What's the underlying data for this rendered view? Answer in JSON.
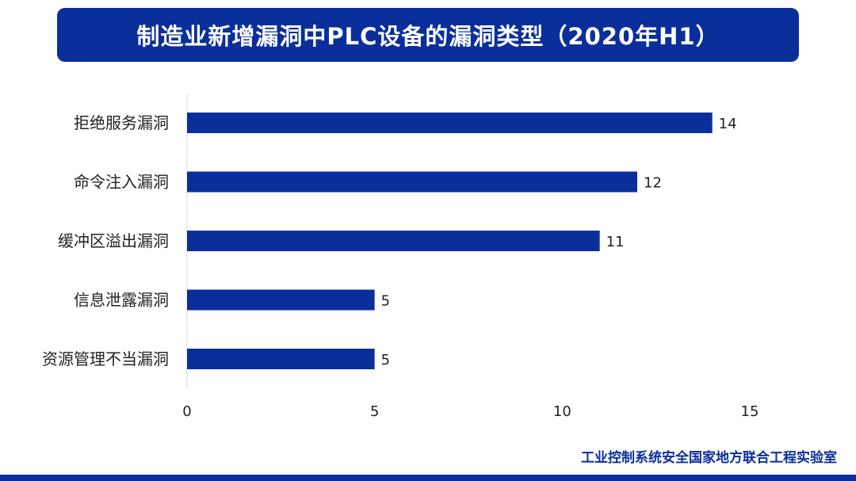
{
  "header": {
    "title": "制造业新增漏洞中PLC设备的漏洞类型（2020年H1）"
  },
  "footer": {
    "organization": "工业控制系统安全国家地方联合工程实验室"
  },
  "colors": {
    "accent": "#0a2f9b",
    "bar": "#0a2f9b",
    "axis_line": "#d9d9d9",
    "label_text": "#222222"
  },
  "chart_data": {
    "type": "bar",
    "orientation": "horizontal",
    "categories": [
      "拒绝服务漏洞",
      "命令注入漏洞",
      "缓冲区溢出漏洞",
      "信息泄露漏洞",
      "资源管理不当漏洞"
    ],
    "values": [
      14,
      12,
      11,
      5,
      5
    ],
    "data_labels": [
      "14",
      "12",
      "11",
      "5",
      "5"
    ],
    "xlim": [
      0,
      15
    ],
    "x_ticks": [
      0,
      5,
      10,
      15
    ],
    "x_tick_labels": [
      "0",
      "5",
      "10",
      "15"
    ],
    "grid": false,
    "legend": "none"
  }
}
